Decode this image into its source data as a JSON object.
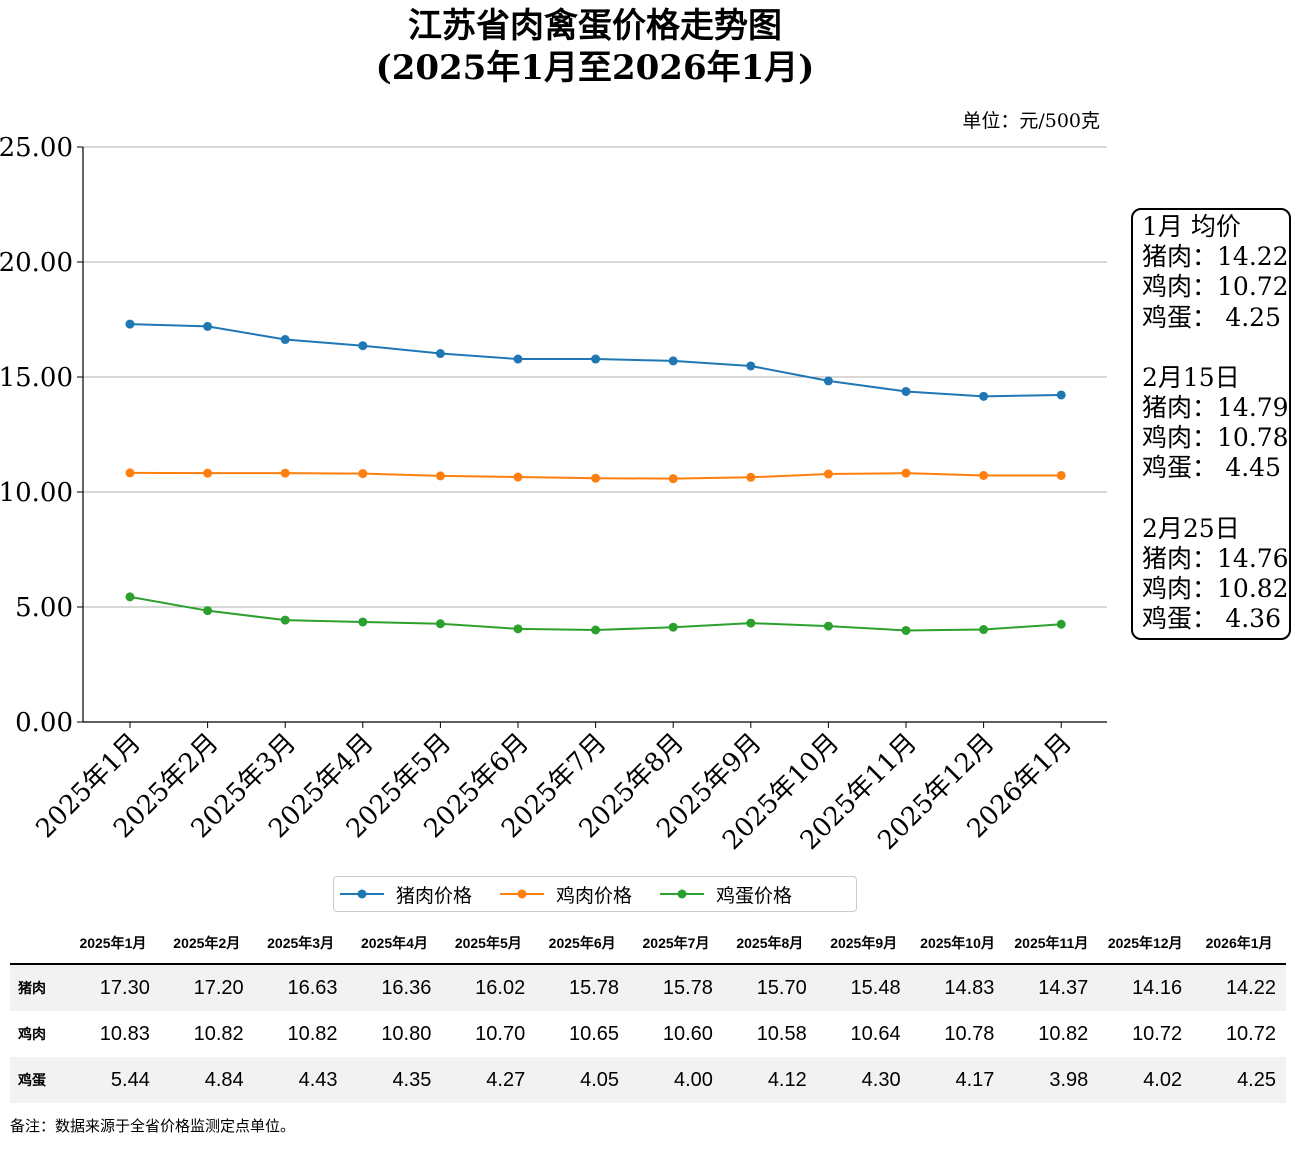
{
  "title_line1": "江苏省肉禽蛋价格走势图",
  "title_line2": "(2025年1月至2026年1月)",
  "unit_label": "单位：元/500克",
  "chart_data": {
    "type": "line",
    "categories": [
      "2025年1月",
      "2025年2月",
      "2025年3月",
      "2025年4月",
      "2025年5月",
      "2025年6月",
      "2025年7月",
      "2025年8月",
      "2025年9月",
      "2025年10月",
      "2025年11月",
      "2025年12月",
      "2026年1月"
    ],
    "series": [
      {
        "name": "猪肉价格",
        "color": "#1f77b4",
        "values": [
          17.3,
          17.2,
          16.63,
          16.36,
          16.02,
          15.78,
          15.78,
          15.7,
          15.48,
          14.83,
          14.37,
          14.16,
          14.22
        ]
      },
      {
        "name": "鸡肉价格",
        "color": "#ff7f0e",
        "values": [
          10.83,
          10.82,
          10.82,
          10.8,
          10.7,
          10.65,
          10.6,
          10.58,
          10.64,
          10.78,
          10.82,
          10.72,
          10.72
        ]
      },
      {
        "name": "鸡蛋价格",
        "color": "#2ca02c",
        "values": [
          5.44,
          4.84,
          4.43,
          4.35,
          4.27,
          4.05,
          4.0,
          4.12,
          4.3,
          4.17,
          3.98,
          4.02,
          4.25
        ]
      }
    ],
    "ylim": [
      0,
      25
    ],
    "yticks": [
      "0.00",
      "5.00",
      "10.00",
      "15.00",
      "20.00",
      "25.00"
    ],
    "ytick_values": [
      0,
      5,
      10,
      15,
      20,
      25
    ],
    "grid": "horizontal",
    "legend": "bottom"
  },
  "side_box": {
    "groups": [
      {
        "title": "1月 均价",
        "rows": [
          {
            "label": "猪肉：",
            "value": "14.22"
          },
          {
            "label": "鸡肉：",
            "value": "10.72"
          },
          {
            "label": "鸡蛋：",
            "value": "4.25"
          }
        ]
      },
      {
        "title": "2月15日",
        "rows": [
          {
            "label": "猪肉：",
            "value": "14.79"
          },
          {
            "label": "鸡肉：",
            "value": "10.78"
          },
          {
            "label": "鸡蛋：",
            "value": "4.45"
          }
        ]
      },
      {
        "title": "2月25日",
        "rows": [
          {
            "label": "猪肉：",
            "value": "14.76"
          },
          {
            "label": "鸡肉：",
            "value": "10.82"
          },
          {
            "label": "鸡蛋：",
            "value": "4.36"
          }
        ]
      }
    ]
  },
  "table": {
    "columns": [
      "2025年1月",
      "2025年2月",
      "2025年3月",
      "2025年4月",
      "2025年5月",
      "2025年6月",
      "2025年7月",
      "2025年8月",
      "2025年9月",
      "2025年10月",
      "2025年11月",
      "2025年12月",
      "2026年1月"
    ],
    "rows": [
      {
        "label": "猪肉",
        "values": [
          "17.30",
          "17.20",
          "16.63",
          "16.36",
          "16.02",
          "15.78",
          "15.78",
          "15.70",
          "15.48",
          "14.83",
          "14.37",
          "14.16",
          "14.22"
        ]
      },
      {
        "label": "鸡肉",
        "values": [
          "10.83",
          "10.82",
          "10.82",
          "10.80",
          "10.70",
          "10.65",
          "10.60",
          "10.58",
          "10.64",
          "10.78",
          "10.82",
          "10.72",
          "10.72"
        ]
      },
      {
        "label": "鸡蛋",
        "values": [
          "5.44",
          "4.84",
          "4.43",
          "4.35",
          "4.27",
          "4.05",
          "4.00",
          "4.12",
          "4.30",
          "4.17",
          "3.98",
          "4.02",
          "4.25"
        ]
      }
    ]
  },
  "note": "备注：数据来源于全省价格监测定点单位。"
}
